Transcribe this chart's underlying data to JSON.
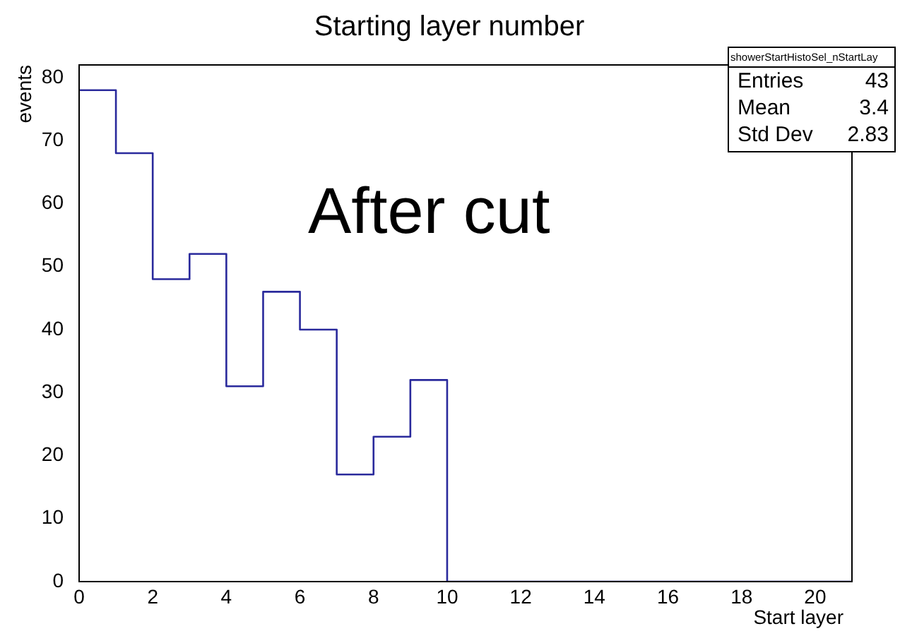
{
  "chart_data": {
    "type": "histogram",
    "title": "Starting layer number",
    "xlabel": "Start layer",
    "ylabel": "events",
    "color": "#2a2a9c",
    "bins": [
      0,
      1,
      2,
      3,
      4,
      5,
      6,
      7,
      8,
      9,
      10,
      11,
      12,
      13,
      14,
      15,
      16,
      17,
      18,
      19,
      20,
      21
    ],
    "values": [
      78,
      68,
      48,
      52,
      31,
      46,
      40,
      17,
      23,
      32,
      0,
      0,
      0,
      0,
      0,
      0,
      0,
      0,
      0,
      0,
      0
    ],
    "xlim": [
      0,
      21
    ],
    "ylim": [
      0,
      82
    ],
    "xticks": [
      0,
      2,
      4,
      6,
      8,
      10,
      12,
      14,
      16,
      18,
      20
    ],
    "yticks": [
      0,
      10,
      20,
      30,
      40,
      50,
      60,
      70,
      80
    ],
    "annotations": [
      "After cut",
      "showerStartHistoSel_nStartLay",
      "Entries",
      "43",
      "Mean",
      "3.4",
      "Std Dev",
      "2.83"
    ]
  }
}
